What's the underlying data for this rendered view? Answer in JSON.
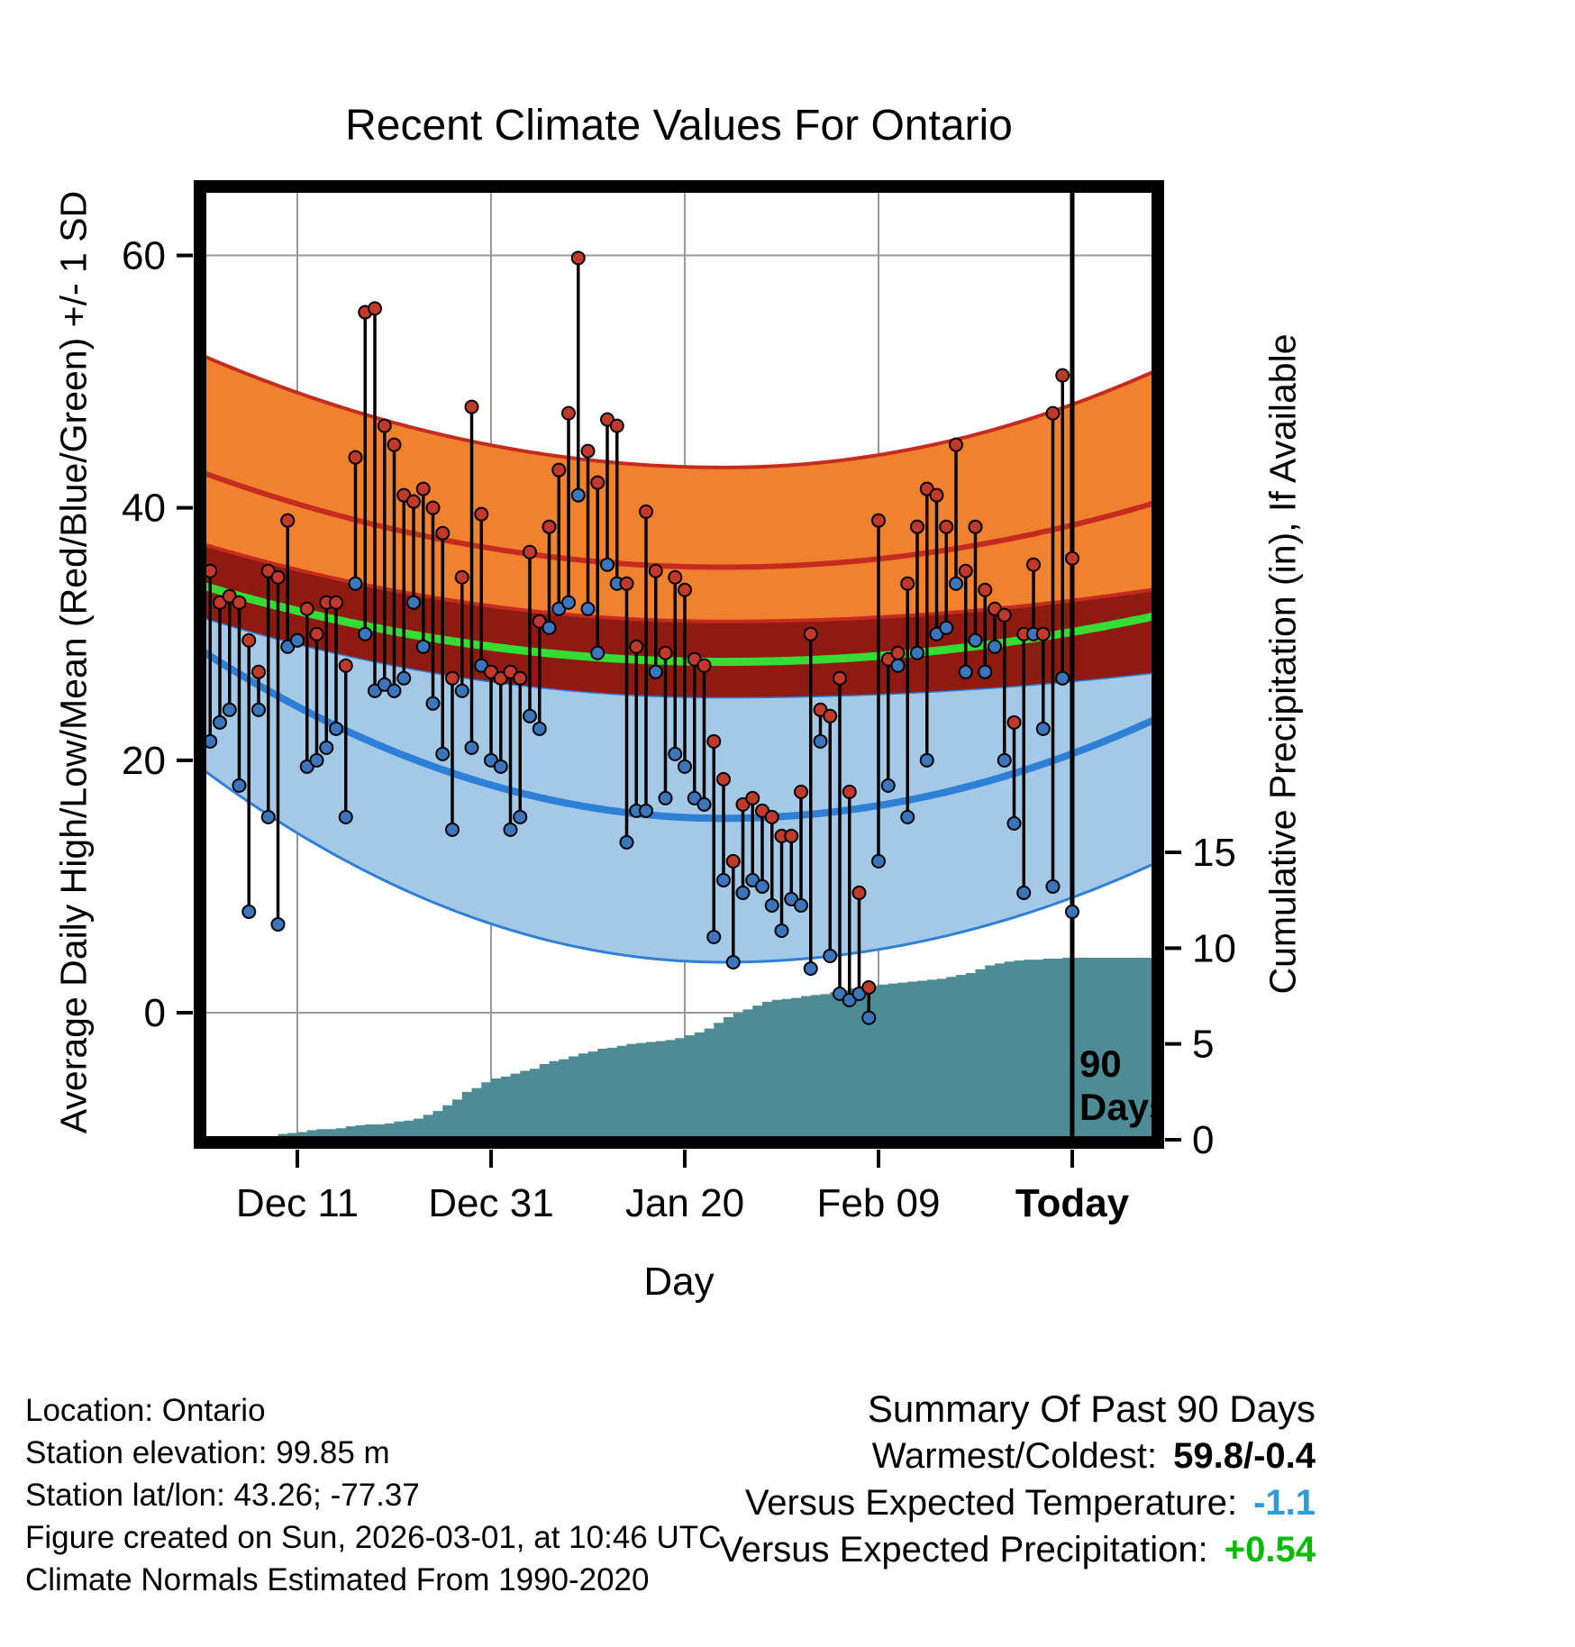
{
  "page": {
    "title": "Recent Climate Values For Ontario"
  },
  "footer": {
    "lines": [
      "Location: Ontario",
      "Station elevation: 99.85 m",
      "Station lat/lon: 43.26; -77.37",
      "Figure created on Sun, 2026-03-01, at 10:46 UTC",
      "Climate Normals Estimated From 1990-2020"
    ]
  },
  "summary": {
    "heading": "Summary Of Past 90 Days",
    "rows": [
      {
        "label": "Warmest/Coldest:",
        "value": "59.8/-0.4",
        "value_color": "#000000"
      },
      {
        "label": "Versus Expected Temperature:",
        "value": "-1.1",
        "value_color": "#2E9BD9"
      },
      {
        "label": "Versus Expected Precipitation:",
        "value": "+0.54",
        "value_color": "#00BB00"
      }
    ]
  },
  "chart_data": {
    "type": "composite",
    "title": "Recent Climate Values For Ontario",
    "xlabel": "Day",
    "ylabel_left": "Average Daily High/Low/Mean (Red/Blue/Green) +/- 1 SD",
    "ylabel_right": "Cumulative Precipitation (in), If Available",
    "x_ticks": [
      {
        "day": 9,
        "label": "Dec 11",
        "bold": false
      },
      {
        "day": 29,
        "label": "Dec 31",
        "bold": false
      },
      {
        "day": 49,
        "label": "Jan 20",
        "bold": false
      },
      {
        "day": 69,
        "label": "Feb 09",
        "bold": false
      },
      {
        "day": 89,
        "label": "Today",
        "bold": true
      }
    ],
    "temp_ticks": [
      0,
      20,
      40,
      60
    ],
    "precip_ticks": [
      0,
      5,
      10,
      15
    ],
    "temp_axis_range": [
      -10.3,
      65.4
    ],
    "precip_axis_range": [
      0,
      15
    ],
    "num_days": 90,
    "daily_high": [
      35.0,
      32.5,
      33.0,
      32.5,
      29.5,
      27.0,
      35.0,
      34.5,
      39.0,
      29.5,
      32.0,
      30.0,
      32.5,
      32.5,
      27.5,
      44.0,
      55.5,
      55.8,
      46.5,
      45.0,
      41.0,
      40.5,
      41.5,
      40.0,
      38.0,
      26.5,
      34.5,
      48.0,
      39.5,
      27.0,
      26.5,
      27.0,
      26.5,
      36.5,
      31.0,
      38.5,
      43.0,
      47.5,
      59.8,
      44.5,
      42.0,
      47.0,
      46.5,
      34.0,
      29.0,
      39.7,
      35.0,
      28.5,
      34.5,
      33.5,
      28.0,
      27.5,
      21.5,
      18.5,
      12.0,
      16.5,
      17.0,
      16.0,
      15.5,
      14.0,
      14.0,
      17.5,
      30.0,
      24.0,
      23.5,
      26.5,
      17.5,
      9.5,
      2.0,
      39.0,
      28.0,
      28.5,
      34.0,
      38.5,
      41.5,
      41.0,
      38.5,
      45.0,
      35.0,
      38.5,
      33.5,
      32.0,
      31.5,
      23.0,
      30.0,
      35.5,
      30.0,
      47.5,
      50.5,
      36.0
    ],
    "daily_low": [
      21.5,
      23.0,
      24.0,
      18.0,
      8.0,
      24.0,
      15.5,
      7.0,
      29.0,
      29.5,
      19.5,
      20.0,
      21.0,
      22.5,
      15.5,
      34.0,
      30.0,
      25.5,
      26.0,
      25.5,
      26.5,
      32.5,
      29.0,
      24.5,
      20.5,
      14.5,
      25.5,
      21.0,
      27.5,
      20.0,
      19.5,
      14.5,
      15.5,
      23.5,
      22.5,
      30.5,
      32.0,
      32.5,
      41.0,
      32.0,
      28.5,
      35.5,
      34.0,
      13.5,
      16.0,
      16.0,
      27.0,
      17.0,
      20.5,
      19.5,
      17.0,
      16.5,
      6.0,
      10.5,
      4.0,
      9.5,
      10.5,
      10.0,
      8.5,
      6.5,
      9.0,
      8.5,
      3.5,
      21.5,
      4.5,
      1.5,
      1.0,
      1.5,
      -0.4,
      12.0,
      18.0,
      27.5,
      15.5,
      28.5,
      20.0,
      30.0,
      30.5,
      34.0,
      27.0,
      29.5,
      27.0,
      29.0,
      20.0,
      15.0,
      9.5,
      30.0,
      22.5,
      10.0,
      26.5,
      8.0
    ],
    "cumulative_precip": [
      0,
      0,
      0,
      0,
      0,
      0,
      0.15,
      0.3,
      0.35,
      0.4,
      0.5,
      0.55,
      0.55,
      0.6,
      0.7,
      0.75,
      0.8,
      0.8,
      0.85,
      0.95,
      1.0,
      1.1,
      1.3,
      1.5,
      1.8,
      2.1,
      2.5,
      2.7,
      3.0,
      3.2,
      3.3,
      3.45,
      3.6,
      3.7,
      3.95,
      4.1,
      4.2,
      4.35,
      4.5,
      4.6,
      4.75,
      4.8,
      4.9,
      5.0,
      5.05,
      5.1,
      5.15,
      5.2,
      5.3,
      5.45,
      5.6,
      5.8,
      6.1,
      6.4,
      6.6,
      6.8,
      7.0,
      7.2,
      7.3,
      7.35,
      7.4,
      7.5,
      7.55,
      7.6,
      7.7,
      7.8,
      7.9,
      8.0,
      8.05,
      8.1,
      8.15,
      8.2,
      8.25,
      8.3,
      8.35,
      8.4,
      8.5,
      8.6,
      8.7,
      8.9,
      9.1,
      9.2,
      9.3,
      9.35,
      9.4,
      9.4,
      9.45,
      9.45,
      9.5,
      9.5
    ],
    "normals": {
      "vertex_day": 53,
      "domain": [
        -1.5,
        98
      ],
      "high_plus_sd": [
        52.3,
        43.2,
        51.0
      ],
      "high_mean": [
        43.0,
        35.3,
        40.5
      ],
      "high_minus_sd": [
        37.3,
        31.0,
        33.6
      ],
      "mean": [
        34.0,
        27.8,
        31.5
      ],
      "mean_minus_sd": [
        31.5,
        25.0,
        27.0
      ],
      "low_mean": [
        29.0,
        15.4,
        23.4
      ],
      "low_minus_sd": [
        19.7,
        4.0,
        12.0
      ]
    },
    "today_line_day": 89,
    "today_label_lines": [
      "90",
      "Days"
    ],
    "colors": {
      "orange_band": "#F0822F",
      "red_line": "#C62B1F",
      "darkred_band": "#8E1A12",
      "green_line": "#33DD33",
      "lightblue_band": "#A3C9E6",
      "blue_line": "#2E7FD6",
      "precip_area": "#4D8C94",
      "high_dot": "#C0392B",
      "low_dot": "#3B76BC",
      "stem": "#000000",
      "grid": "#999999",
      "frame": "#000000"
    }
  }
}
